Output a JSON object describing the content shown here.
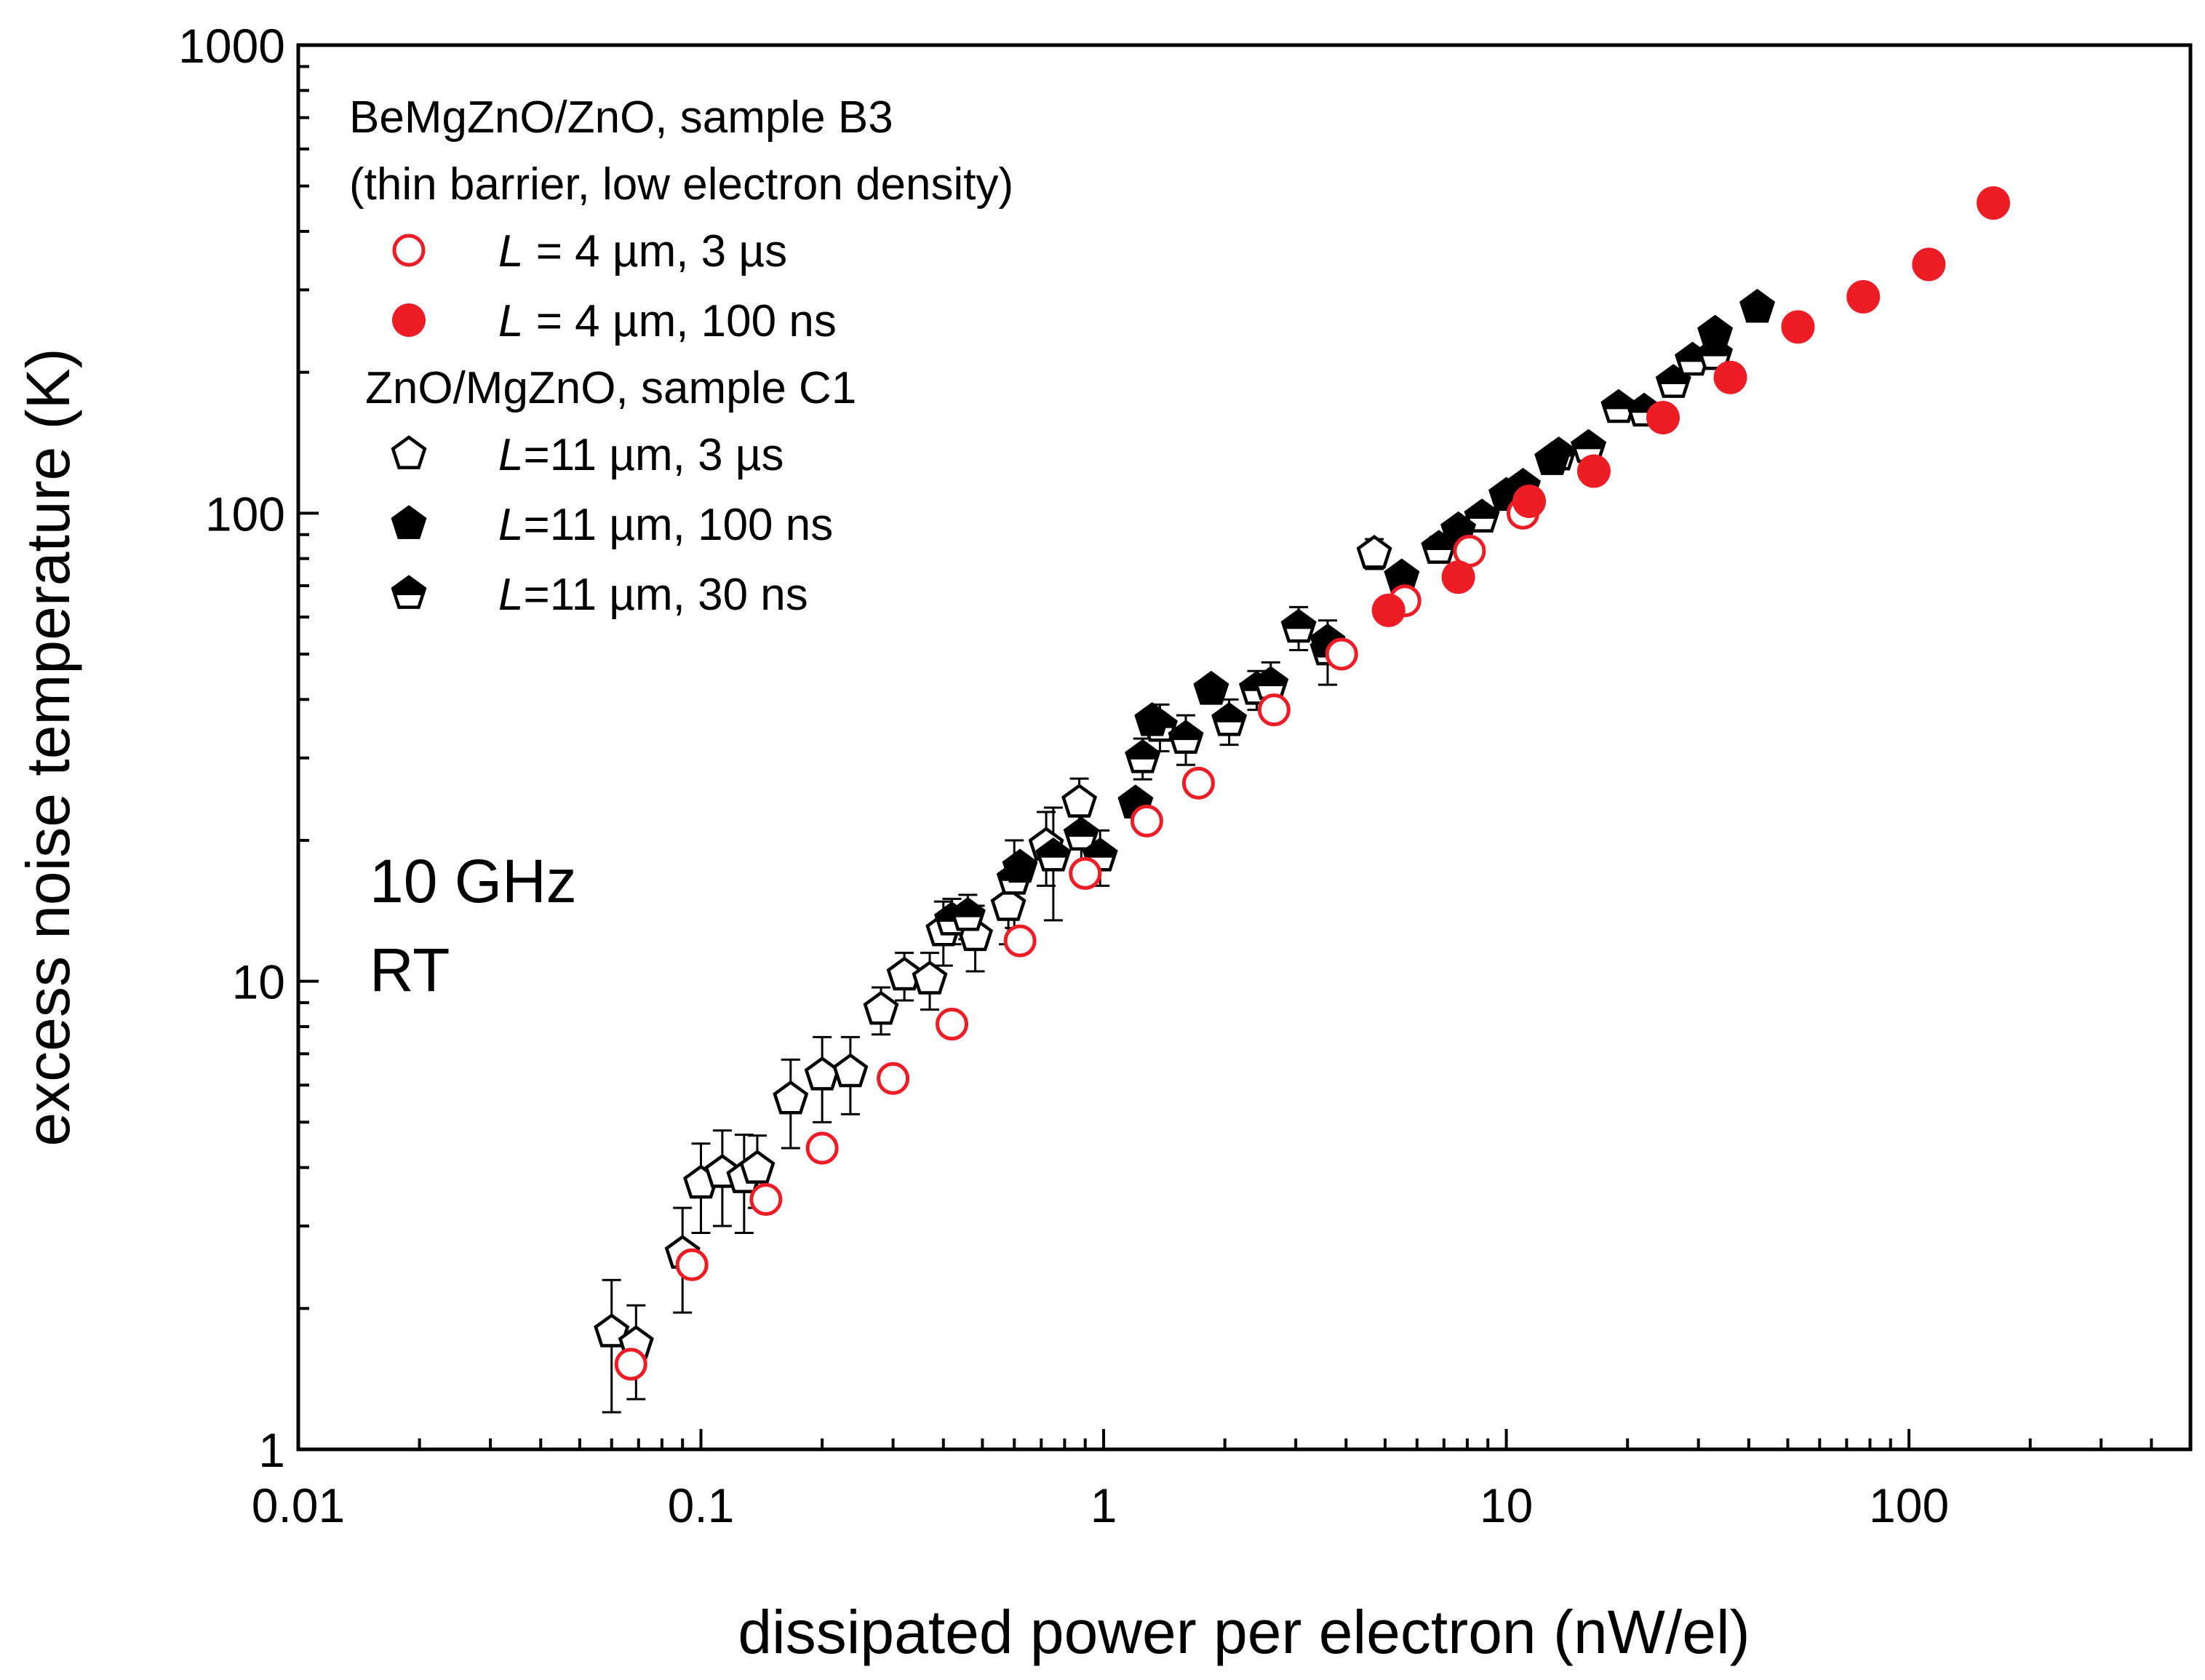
{
  "chart_data": {
    "type": "scatter",
    "title": "",
    "xlabel": "dissipated power per electron (nW/el)",
    "ylabel": "excess noise temperature (K)",
    "xscale": "log",
    "yscale": "log",
    "xlim": [
      0.01,
      500
    ],
    "ylim": [
      1,
      1000
    ],
    "x_ticks": [
      0.01,
      0.1,
      1,
      10,
      100
    ],
    "x_tick_labels": [
      "0.01",
      "0.1",
      "1",
      "10",
      "100"
    ],
    "y_ticks": [
      1,
      10,
      100,
      1000
    ],
    "y_tick_labels": [
      "1",
      "10",
      "100",
      "1000"
    ],
    "annotations": [
      "10 GHz",
      "RT"
    ],
    "legend": {
      "placement": "top-left",
      "groups": [
        {
          "header": [
            "BeMgZnO/ZnO, sample B3",
            "(thin barrier, low electron density)"
          ],
          "entries": [
            0,
            1
          ]
        },
        {
          "header": [
            "ZnO/MgZnO, sample C1"
          ],
          "entries": [
            2,
            3,
            4
          ]
        }
      ]
    },
    "series": [
      {
        "name": "L = 4 µm, 3 µs",
        "label_var": "L",
        "label_rest": " = 4 µm, 3 µs",
        "marker": "circle-open",
        "color": "#ee1c24",
        "points": [
          [
            0.067,
            1.52
          ],
          [
            0.095,
            2.48
          ],
          [
            0.145,
            3.42
          ],
          [
            0.2,
            4.4
          ],
          [
            0.3,
            6.2
          ],
          [
            0.42,
            8.1
          ],
          [
            0.62,
            12.2
          ],
          [
            0.9,
            17
          ],
          [
            1.28,
            22
          ],
          [
            1.72,
            26.5
          ],
          [
            2.65,
            38
          ],
          [
            3.9,
            50
          ],
          [
            5.6,
            65
          ],
          [
            8.1,
            83
          ],
          [
            11,
            100
          ],
          [
            16.5,
            123
          ],
          [
            24.5,
            160
          ]
        ]
      },
      {
        "name": "L = 4 µm, 100 ns",
        "label_var": "L",
        "label_rest": " = 4 µm, 100 ns",
        "marker": "circle-filled",
        "color": "#ee1c24",
        "points": [
          [
            5.1,
            62
          ],
          [
            7.6,
            73
          ],
          [
            11.4,
            106
          ],
          [
            16.5,
            123
          ],
          [
            24.5,
            160
          ],
          [
            36,
            195
          ],
          [
            53,
            250
          ],
          [
            77,
            290
          ],
          [
            112,
            340
          ],
          [
            162,
            460
          ]
        ]
      },
      {
        "name": "L=11 µm, 3 µs",
        "label_var": "L",
        "label_rest": "=11 µm, 3 µs",
        "marker": "pentagon-open",
        "color": "#000000",
        "points": [
          {
            "x": 0.06,
            "y": 1.78,
            "err": [
              0.58,
              0.52
            ]
          },
          {
            "x": 0.069,
            "y": 1.68,
            "err": [
              0.4,
              0.35
            ]
          },
          {
            "x": 0.09,
            "y": 2.62,
            "err": [
              0.66,
              0.66
            ]
          },
          {
            "x": 0.1,
            "y": 3.7,
            "err": [
              0.8,
              0.8
            ]
          },
          {
            "x": 0.113,
            "y": 3.9,
            "err": [
              0.9,
              0.9
            ]
          },
          {
            "x": 0.128,
            "y": 3.8,
            "err": [
              0.9,
              0.9
            ]
          },
          {
            "x": 0.138,
            "y": 3.98,
            "err": [
              0.7,
              0.7
            ]
          },
          {
            "x": 0.167,
            "y": 5.6,
            "err": [
              1.2,
              1.2
            ]
          },
          {
            "x": 0.2,
            "y": 6.3,
            "err": [
              1.3,
              1.3
            ]
          },
          {
            "x": 0.235,
            "y": 6.4,
            "err": [
              1.2,
              1.2
            ]
          },
          {
            "x": 0.28,
            "y": 8.7,
            "err": [
              1.0,
              1.0
            ]
          },
          {
            "x": 0.32,
            "y": 10.3,
            "err": [
              1.2,
              1.2
            ]
          },
          {
            "x": 0.37,
            "y": 10.1,
            "err": [
              1.4,
              1.4
            ]
          },
          {
            "x": 0.4,
            "y": 12.8,
            "err": [
              2.0,
              2.0
            ]
          },
          {
            "x": 0.48,
            "y": 12.5,
            "err": [
              2.0,
              2.0
            ]
          },
          {
            "x": 0.58,
            "y": 14.5,
            "err": [
              2.5,
              2.5
            ]
          },
          {
            "x": 0.72,
            "y": 19.5,
            "err": [
              3.5,
              3.5
            ]
          },
          {
            "x": 0.87,
            "y": 24.1,
            "err": [
              3.0,
              3.0
            ]
          },
          {
            "x": 4.7,
            "y": 82,
            "err": [
              6.0,
              6.0
            ]
          }
        ]
      },
      {
        "name": "L=11 µm, 100 ns",
        "label_var": "L",
        "label_rest": "=11 µm, 100 ns",
        "marker": "pentagon-filled",
        "color": "#000000",
        "points": [
          {
            "x": 0.62,
            "y": 17.5
          },
          {
            "x": 1.2,
            "y": 24
          },
          {
            "x": 1.32,
            "y": 36
          },
          {
            "x": 1.85,
            "y": 42
          },
          {
            "x": 3.6,
            "y": 53
          },
          {
            "x": 5.5,
            "y": 73
          },
          {
            "x": 7.6,
            "y": 92
          },
          {
            "x": 10,
            "y": 109
          },
          {
            "x": 13,
            "y": 130
          },
          {
            "x": 33,
            "y": 242
          },
          {
            "x": 42,
            "y": 275
          }
        ]
      },
      {
        "name": "L=11 µm, 30 ns",
        "label_var": "L",
        "label_rest": "=11 µm, 30 ns",
        "marker": "pentagon-half",
        "color": "#000000",
        "points": [
          {
            "x": 0.42,
            "y": 13.5,
            "err": [
              1.5,
              1.5
            ]
          },
          {
            "x": 0.46,
            "y": 13.8,
            "err": [
              1.5,
              1.5
            ]
          },
          {
            "x": 0.6,
            "y": 16.5,
            "err": [
              3.5,
              3.5
            ]
          },
          {
            "x": 0.75,
            "y": 18.5,
            "err": [
              5.0,
              5.0
            ]
          },
          {
            "x": 0.88,
            "y": 20.5,
            "err": [
              3.0,
              3.0
            ]
          },
          {
            "x": 0.98,
            "y": 18.5,
            "err": [
              2.5,
              2.5
            ]
          },
          {
            "x": 1.25,
            "y": 30,
            "err": [
              3.0,
              3.0
            ]
          },
          {
            "x": 1.38,
            "y": 35,
            "err": [
              4.0,
              4.0
            ]
          },
          {
            "x": 1.6,
            "y": 33,
            "err": [
              4.0,
              4.0
            ]
          },
          {
            "x": 2.05,
            "y": 36,
            "err": [
              4.0,
              4.0
            ]
          },
          {
            "x": 2.4,
            "y": 42,
            "err": [
              4.0,
              4.0
            ]
          },
          {
            "x": 2.6,
            "y": 43,
            "err": [
              5.0,
              5.0
            ]
          },
          {
            "x": 3.05,
            "y": 57,
            "err": [
              6.0,
              6.0
            ]
          },
          {
            "x": 3.6,
            "y": 51,
            "err": [
              8.0,
              8.0
            ]
          },
          {
            "x": 6.8,
            "y": 84,
            "err": [
              5.0,
              5.0
            ]
          },
          {
            "x": 8.7,
            "y": 98,
            "err": [
              5.0,
              5.0
            ]
          },
          {
            "x": 11,
            "y": 114,
            "err": [
              5.0,
              5.0
            ]
          },
          {
            "x": 13.5,
            "y": 133,
            "err": [
              5.0,
              5.0
            ]
          },
          {
            "x": 16,
            "y": 138,
            "err": [
              6.0,
              6.0
            ]
          },
          {
            "x": 19,
            "y": 168,
            "err": [
              6.0,
              6.0
            ]
          },
          {
            "x": 22,
            "y": 165,
            "err": [
              6.0,
              6.0
            ]
          },
          {
            "x": 26,
            "y": 190,
            "err": [
              8.0,
              8.0
            ]
          },
          {
            "x": 29,
            "y": 212,
            "err": [
              8.0,
              8.0
            ]
          },
          {
            "x": 33,
            "y": 218,
            "err": [
              10.0,
              10.0
            ]
          }
        ]
      }
    ]
  }
}
